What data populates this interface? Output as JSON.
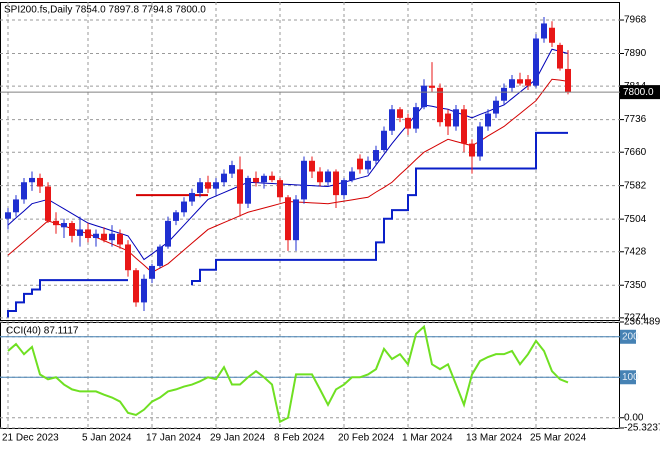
{
  "chart_data": [
    {
      "type": "candlestick",
      "title": "SPI200.fs,Daily  7854.0 7897.8 7794.8 7800.0",
      "categories": [
        "21 Dec 2023",
        null,
        null,
        null,
        null,
        null,
        null,
        null,
        null,
        null,
        "5 Jan 2024",
        null,
        null,
        null,
        null,
        null,
        null,
        null,
        "17 Jan 2024",
        null,
        null,
        null,
        null,
        null,
        null,
        null,
        "29 Jan 2024",
        null,
        null,
        null,
        null,
        null,
        null,
        null,
        "8 Feb 2024",
        null,
        null,
        null,
        null,
        null,
        null,
        null,
        "20 Feb 2024",
        null,
        null,
        null,
        null,
        null,
        null,
        null,
        "1 Mar 2024",
        null,
        null,
        null,
        null,
        null,
        null,
        null,
        "13 Mar 2024",
        null,
        null,
        null,
        null,
        null,
        null,
        null,
        "25 Mar 2024",
        null,
        null,
        null,
        null
      ],
      "open": [
        7505,
        7520,
        7550,
        7590,
        7600,
        7580,
        7500,
        7485,
        7495,
        7465,
        7480,
        7460,
        7470,
        7455,
        7470,
        7445,
        7385,
        7310,
        7365,
        7395,
        7440,
        7500,
        7520,
        7545,
        7565,
        7590,
        7575,
        7590,
        7610,
        7620,
        7540,
        7600,
        7590,
        7605,
        7595,
        7555,
        7455,
        7550,
        7640,
        7615,
        7590,
        7615,
        7560,
        7595,
        7645,
        7620,
        7640,
        7665,
        7710,
        7760,
        7740,
        7715,
        7765,
        7815,
        7810,
        7750,
        7720,
        7760,
        7680,
        7650,
        7720,
        7750,
        7780,
        7810,
        7830,
        7830,
        7815,
        7925,
        7950,
        7910,
        7854.0
      ],
      "high": [
        7530,
        7560,
        7600,
        7615,
        7610,
        7590,
        7520,
        7505,
        7500,
        7510,
        7495,
        7480,
        7485,
        7490,
        7480,
        7455,
        7390,
        7375,
        7400,
        7445,
        7510,
        7525,
        7555,
        7575,
        7600,
        7605,
        7600,
        7620,
        7640,
        7650,
        7605,
        7615,
        7610,
        7615,
        7600,
        7560,
        7560,
        7650,
        7650,
        7625,
        7620,
        7620,
        7600,
        7625,
        7655,
        7650,
        7675,
        7720,
        7770,
        7765,
        7750,
        7775,
        7830,
        7870,
        7820,
        7760,
        7770,
        7770,
        7690,
        7730,
        7760,
        7790,
        7820,
        7840,
        7845,
        7840,
        7935,
        7975,
        7965,
        7915,
        7897.8
      ],
      "low": [
        7480,
        7510,
        7540,
        7570,
        7565,
        7495,
        7470,
        7460,
        7450,
        7440,
        7450,
        7440,
        7450,
        7440,
        7435,
        7370,
        7300,
        7290,
        7355,
        7390,
        7435,
        7490,
        7510,
        7535,
        7555,
        7565,
        7560,
        7580,
        7600,
        7510,
        7530,
        7580,
        7575,
        7590,
        7545,
        7430,
        7430,
        7540,
        7600,
        7580,
        7580,
        7530,
        7550,
        7590,
        7610,
        7610,
        7630,
        7660,
        7700,
        7730,
        7700,
        7705,
        7760,
        7800,
        7720,
        7700,
        7710,
        7660,
        7610,
        7640,
        7710,
        7740,
        7770,
        7800,
        7815,
        7805,
        7810,
        7915,
        7905,
        7850,
        7794.8
      ],
      "close": [
        7520,
        7550,
        7590,
        7600,
        7580,
        7500,
        7490,
        7495,
        7465,
        7480,
        7460,
        7470,
        7455,
        7470,
        7445,
        7385,
        7310,
        7365,
        7395,
        7440,
        7500,
        7520,
        7545,
        7565,
        7590,
        7575,
        7590,
        7610,
        7630,
        7540,
        7600,
        7590,
        7605,
        7595,
        7555,
        7455,
        7550,
        7640,
        7615,
        7590,
        7615,
        7560,
        7595,
        7615,
        7620,
        7640,
        7665,
        7710,
        7760,
        7740,
        7715,
        7765,
        7815,
        7810,
        7730,
        7720,
        7760,
        7680,
        7650,
        7720,
        7750,
        7780,
        7810,
        7830,
        7820,
        7815,
        7925,
        7960,
        7915,
        7855,
        7800.0
      ],
      "up_color": "#1f2fd1",
      "down_color": "#e81717",
      "overlays": [
        {
          "style": "line",
          "color": "#d40000",
          "values": [
            7420,
            7436,
            7452,
            7468,
            7484,
            7500,
            7494,
            7488,
            7482,
            7476,
            7470,
            7462,
            7454,
            7446,
            7438,
            7430,
            7413,
            7397,
            7380,
            7390,
            7400,
            7416,
            7432,
            7448,
            7464,
            7480,
            7488,
            7496,
            7504,
            7512,
            7520,
            7525,
            7530,
            7535,
            7540,
            7545,
            7544,
            7543,
            7542,
            7541,
            7540,
            7543,
            7546,
            7549,
            7552,
            7555,
            7567,
            7578,
            7590,
            7608,
            7625,
            7643,
            7660,
            7670,
            7680,
            7690,
            7685,
            7680,
            7675,
            7686,
            7698,
            7709,
            7720,
            7735,
            7750,
            7765,
            7780,
            7805,
            7830,
            7828,
            7825
          ]
        },
        {
          "style": "line",
          "color": "#0000b8",
          "values": [
            7490,
            7507,
            7523,
            7540,
            7545,
            7550,
            7539,
            7528,
            7517,
            7506,
            7495,
            7489,
            7483,
            7477,
            7471,
            7465,
            7438,
            7410,
            7423,
            7437,
            7450,
            7470,
            7490,
            7510,
            7530,
            7550,
            7558,
            7566,
            7574,
            7582,
            7590,
            7589,
            7588,
            7587,
            7586,
            7585,
            7584,
            7583,
            7582,
            7581,
            7580,
            7585,
            7590,
            7595,
            7600,
            7605,
            7630,
            7655,
            7680,
            7703,
            7725,
            7748,
            7770,
            7767,
            7763,
            7760,
            7753,
            7747,
            7740,
            7748,
            7755,
            7763,
            7770,
            7785,
            7800,
            7815,
            7830,
            7865,
            7900,
            7895,
            7890
          ]
        },
        {
          "style": "step",
          "color": "#0a1fc8",
          "values": [
            7275,
            7290,
            7310,
            7330,
            7340,
            7362,
            7362,
            7362,
            7362,
            7362,
            7362,
            7362,
            7362,
            7362,
            7362,
            7362,
            null,
            null,
            null,
            null,
            null,
            null,
            null,
            7350,
            7360,
            7386,
            7386,
            7409,
            7409,
            7409,
            7409,
            7409,
            7409,
            7409,
            7409,
            7409,
            7409,
            7409,
            7409,
            7409,
            7409,
            7409,
            7409,
            7409,
            7409,
            7409,
            7409,
            7450,
            7505,
            7525,
            7525,
            7560,
            7622,
            7622,
            7622,
            7622,
            7622,
            7622,
            7622,
            7622,
            7622,
            7622,
            7622,
            7622,
            7622,
            7622,
            7622,
            7705,
            7705,
            7705,
            7705
          ]
        },
        {
          "style": "step",
          "color": "#d40000",
          "values": [
            null,
            null,
            null,
            null,
            null,
            null,
            null,
            null,
            null,
            null,
            null,
            null,
            null,
            null,
            null,
            null,
            7560,
            7560,
            7560,
            7560,
            7560,
            7560,
            7560,
            7560,
            7560,
            7560,
            null,
            null,
            null,
            null,
            null,
            null,
            null,
            null,
            null,
            null,
            null,
            null,
            null,
            null,
            null,
            null,
            null,
            null,
            null,
            null,
            null,
            null,
            null,
            null,
            null,
            null,
            null,
            null,
            null,
            null,
            null,
            null,
            null,
            null,
            null,
            null,
            null,
            null,
            null,
            null,
            null,
            null,
            null,
            null,
            null
          ]
        }
      ],
      "ylim": [
        7269,
        8010
      ],
      "yticks": [
        7968,
        7890,
        7814,
        7736,
        7660,
        7582,
        7504,
        7428,
        7350,
        7274
      ],
      "last_price": {
        "value": 7800,
        "label": "7800.0"
      },
      "grid": true
    },
    {
      "type": "line",
      "title": "CCI(40) 87.1117",
      "color": "#6fe022",
      "level_color": "#4682b4",
      "values": [
        165,
        182,
        157,
        175,
        107,
        95,
        100,
        82,
        70,
        65,
        65,
        65,
        57,
        50,
        40,
        12,
        7,
        20,
        40,
        50,
        65,
        70,
        77,
        82,
        90,
        100,
        95,
        125,
        82,
        82,
        100,
        115,
        100,
        82,
        -10,
        0,
        107,
        107,
        107,
        70,
        32,
        70,
        82,
        100,
        100,
        107,
        120,
        170,
        145,
        157,
        132,
        207,
        225,
        132,
        120,
        132,
        82,
        32,
        107,
        140,
        150,
        157,
        157,
        165,
        132,
        157,
        190,
        165,
        115,
        95,
        87.1117
      ],
      "ylim": [
        -25.3237,
        236.4892
      ],
      "yticks": [
        236.4892,
        200,
        100,
        {
          "value": 0,
          "label": "0.00"
        },
        -25.3237
      ],
      "grid": true
    }
  ]
}
